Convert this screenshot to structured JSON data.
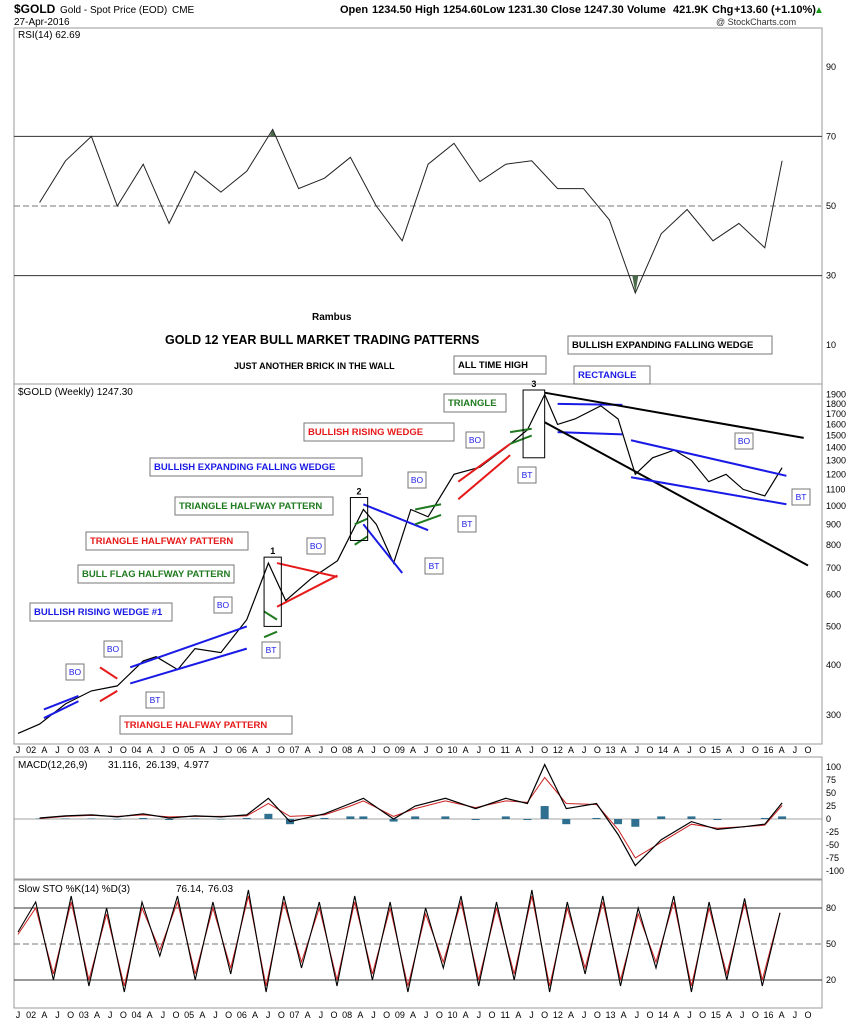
{
  "header": {
    "symbol": "$GOLD",
    "name": "Gold - Spot Price (EOD)",
    "exchange": "CME",
    "date": "27-Apr-2016",
    "open_label": "Open",
    "open": "1234.50",
    "high_label": "High",
    "high": "1254.60",
    "low_label": "Low",
    "low": "1231.30",
    "close_label": "Close",
    "close": "1247.30",
    "volume_label": "Volume",
    "volume": "421.9K",
    "chg_label": "Chg",
    "chg": "+13.60 (+1.10%)",
    "chg_arrow": "▲",
    "copyright": "@ StockCharts.com"
  },
  "colors": {
    "blue": "#1a1ae6",
    "red": "#e61a1a",
    "green": "#1f7a1f",
    "macd_signal": "#cc2222",
    "macd_hist": "#2f6f8f",
    "sto_d": "#cc2222",
    "price": "#000000",
    "rsi_fill": "#4a6a4a"
  },
  "annotations": {
    "author": "Rambus",
    "chart_title": "GOLD 12 YEAR BULL MARKET TRADING PATTERNS",
    "chart_subtitle": "JUST ANOTHER BRICK IN THE WALL",
    "labels": [
      {
        "text": "ALL TIME HIGH",
        "color": "#000000"
      },
      {
        "text": "BULLISH EXPANDING FALLING WEDGE",
        "color": "#000000"
      },
      {
        "text": "RECTANGLE",
        "color": "#1a1ae6"
      },
      {
        "text": "TRIANGLE",
        "color": "#1f7a1f"
      },
      {
        "text": "BULLISH RISING WEDGE",
        "color": "#e61a1a"
      },
      {
        "text": "BULLISH EXPANDING FALLING WEDGE",
        "color": "#1a1ae6"
      },
      {
        "text": "TRIANGLE HALFWAY PATTERN",
        "color": "#1f7a1f"
      },
      {
        "text": "TRIANGLE HALFWAY PATTERN",
        "color": "#e61a1a"
      },
      {
        "text": "BULL FLAG HALFWAY PATTERN",
        "color": "#1f7a1f"
      },
      {
        "text": "BULLISH RISING WEDGE #1",
        "color": "#1a1ae6"
      },
      {
        "text": "TRIANGLE HALFWAY PATTERN",
        "color": "#e61a1a"
      }
    ],
    "markers": [
      "BO",
      "BT",
      "1",
      "2",
      "3"
    ]
  },
  "chart_data": [
    {
      "type": "line",
      "title": "RSI(14) 62.69",
      "legend": "RSI(14)",
      "last_value": "62.69",
      "ylim": [
        0,
        100
      ],
      "y_ticks": [
        "90",
        "70",
        "50",
        "30",
        "10"
      ],
      "reference_lines": [
        70,
        50,
        30
      ],
      "x": [
        "2001-12",
        "2002-06",
        "2002-12",
        "2003-06",
        "2003-12",
        "2004-06",
        "2004-12",
        "2005-06",
        "2005-12",
        "2006-06",
        "2006-12",
        "2007-06",
        "2007-12",
        "2008-06",
        "2008-12",
        "2009-06",
        "2009-12",
        "2010-06",
        "2010-12",
        "2011-06",
        "2011-12",
        "2012-06",
        "2012-12",
        "2013-06",
        "2013-12",
        "2014-06",
        "2014-12",
        "2015-06",
        "2015-12",
        "2016-04"
      ],
      "values": [
        51,
        63,
        70,
        50,
        62,
        45,
        60,
        54,
        60,
        72,
        55,
        58,
        64,
        50,
        40,
        62,
        68,
        57,
        62,
        63,
        55,
        55,
        46,
        25,
        42,
        49,
        40,
        45,
        38,
        63
      ]
    },
    {
      "type": "line",
      "title": "$GOLD (Weekly) 1247.30",
      "legend": "$GOLD (Weekly)",
      "last_value": "1247.30",
      "scale": "log",
      "ylim": [
        260,
        1950
      ],
      "y_ticks": [
        "1900",
        "1800",
        "1700",
        "1600",
        "1500",
        "1400",
        "1300",
        "1200",
        "1100",
        "1000",
        "900",
        "800",
        "700",
        "600",
        "500",
        "400",
        "300"
      ],
      "x_ticks": [
        "J",
        "02",
        "A",
        "J",
        "O",
        "03",
        "A",
        "J",
        "O",
        "04",
        "A",
        "J",
        "O",
        "05",
        "A",
        "J",
        "O",
        "06",
        "A",
        "J",
        "O",
        "07",
        "A",
        "J",
        "O",
        "08",
        "A",
        "J",
        "O",
        "09",
        "A",
        "J",
        "O",
        "10",
        "A",
        "J",
        "O",
        "11",
        "A",
        "J",
        "O",
        "12",
        "A",
        "J",
        "O",
        "13",
        "A",
        "J",
        "O",
        "14",
        "A",
        "J",
        "O",
        "15",
        "A",
        "J",
        "O",
        "16",
        "A",
        "J",
        "O"
      ],
      "x": [
        "2001-07",
        "2001-12",
        "2002-06",
        "2002-12",
        "2003-06",
        "2003-12",
        "2004-03",
        "2004-08",
        "2004-12",
        "2005-06",
        "2005-12",
        "2006-05",
        "2006-09",
        "2007-03",
        "2007-09",
        "2008-03",
        "2008-06",
        "2008-10",
        "2009-02",
        "2009-06",
        "2009-12",
        "2010-06",
        "2010-12",
        "2011-05",
        "2011-09",
        "2011-12",
        "2012-04",
        "2012-10",
        "2013-02",
        "2013-06",
        "2013-10",
        "2014-03",
        "2014-07",
        "2014-11",
        "2015-03",
        "2015-07",
        "2015-12",
        "2016-04"
      ],
      "values": [
        270,
        285,
        320,
        345,
        355,
        410,
        420,
        390,
        440,
        430,
        520,
        720,
        580,
        660,
        730,
        980,
        900,
        720,
        980,
        940,
        1200,
        1250,
        1400,
        1550,
        1900,
        1600,
        1650,
        1780,
        1650,
        1200,
        1320,
        1380,
        1300,
        1150,
        1200,
        1100,
        1060,
        1247
      ]
    },
    {
      "type": "line",
      "title": "MACD(12,26,9) 31.116, 26.139, 4.977",
      "legend": [
        "MACD(12,26,9)",
        "31.116,",
        "26.139,",
        "4.977"
      ],
      "ylim": [
        -110,
        110
      ],
      "y_ticks": [
        "100",
        "75",
        "50",
        "25",
        "0",
        "-25",
        "-50",
        "-75",
        "-100"
      ],
      "x": [
        "2001-12",
        "2002-06",
        "2002-12",
        "2003-06",
        "2003-12",
        "2004-06",
        "2004-12",
        "2005-06",
        "2005-12",
        "2006-05",
        "2006-10",
        "2007-06",
        "2007-12",
        "2008-03",
        "2008-10",
        "2009-03",
        "2009-10",
        "2010-05",
        "2010-12",
        "2011-05",
        "2011-09",
        "2012-02",
        "2012-09",
        "2013-02",
        "2013-06",
        "2013-12",
        "2014-07",
        "2015-01",
        "2015-07",
        "2015-12",
        "2016-04"
      ],
      "series": [
        {
          "name": "MACD",
          "values": [
            2,
            6,
            8,
            4,
            10,
            2,
            6,
            4,
            8,
            40,
            -5,
            10,
            30,
            40,
            0,
            25,
            40,
            20,
            40,
            30,
            105,
            20,
            30,
            -30,
            -90,
            -40,
            -5,
            -20,
            -15,
            -10,
            31
          ]
        },
        {
          "name": "Signal",
          "values": [
            1,
            5,
            7,
            5,
            8,
            4,
            5,
            5,
            6,
            30,
            5,
            8,
            25,
            35,
            5,
            20,
            35,
            22,
            35,
            32,
            80,
            30,
            28,
            -20,
            -75,
            -45,
            -10,
            -18,
            -15,
            -12,
            26
          ]
        },
        {
          "name": "Histogram",
          "values": [
            1,
            1,
            1,
            -1,
            2,
            -2,
            1,
            -1,
            2,
            10,
            -10,
            2,
            5,
            5,
            -5,
            5,
            5,
            -2,
            5,
            -2,
            25,
            -10,
            2,
            -10,
            -15,
            5,
            5,
            -2,
            0,
            2,
            5
          ]
        }
      ]
    },
    {
      "type": "line",
      "title": "Slow STO %K(14) %D(3) 76.14, 76.03",
      "legend": [
        "Slow STO %K(14) %D(3)",
        "76.14,",
        "76.03"
      ],
      "ylim": [
        0,
        100
      ],
      "y_ticks": [
        "80",
        "50",
        "20"
      ],
      "reference_lines": [
        80,
        50,
        20
      ],
      "x_ticks": [
        "J",
        "02",
        "A",
        "J",
        "O",
        "03",
        "A",
        "J",
        "O",
        "04",
        "A",
        "J",
        "O",
        "05",
        "A",
        "J",
        "O",
        "06",
        "A",
        "J",
        "O",
        "07",
        "A",
        "J",
        "O",
        "08",
        "A",
        "J",
        "O",
        "09",
        "A",
        "J",
        "O",
        "10",
        "A",
        "J",
        "O",
        "11",
        "A",
        "J",
        "O",
        "12",
        "A",
        "J",
        "O",
        "13",
        "A",
        "J",
        "O",
        "14",
        "A",
        "J",
        "O",
        "15",
        "A",
        "J",
        "O",
        "16",
        "A",
        "J",
        "O"
      ],
      "series": [
        {
          "name": "%K",
          "values": [
            60,
            85,
            20,
            90,
            15,
            80,
            10,
            85,
            40,
            90,
            20,
            85,
            25,
            95,
            10,
            90,
            30,
            85,
            15,
            90,
            20,
            85,
            10,
            80,
            30,
            90,
            15,
            85,
            20,
            95,
            10,
            85,
            25,
            90,
            15,
            80,
            30,
            90,
            10,
            85,
            20,
            88,
            15,
            76
          ]
        },
        {
          "name": "%D",
          "values": [
            58,
            80,
            25,
            85,
            20,
            75,
            15,
            80,
            45,
            85,
            25,
            80,
            30,
            90,
            15,
            85,
            35,
            80,
            20,
            85,
            25,
            80,
            15,
            75,
            35,
            85,
            20,
            80,
            25,
            90,
            15,
            80,
            30,
            85,
            20,
            75,
            35,
            85,
            15,
            80,
            25,
            84,
            20,
            76
          ]
        }
      ]
    }
  ]
}
